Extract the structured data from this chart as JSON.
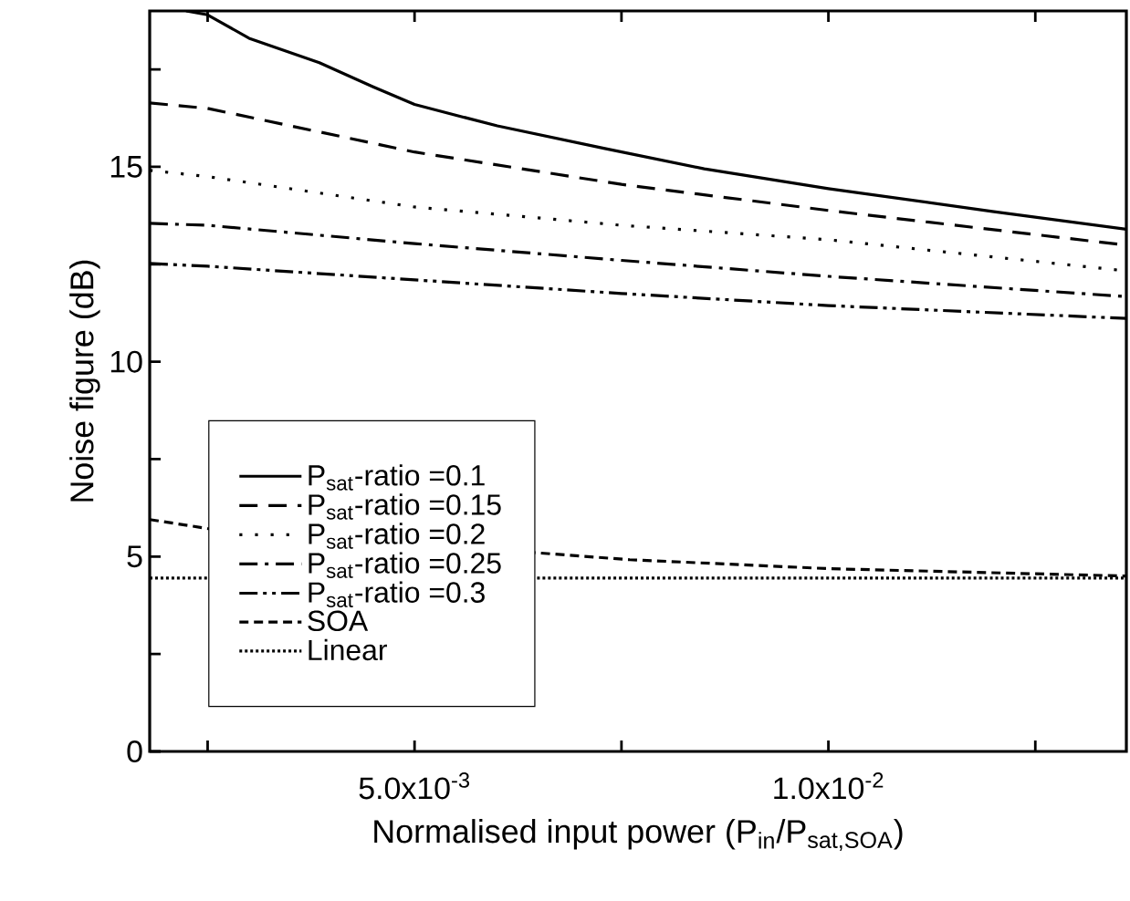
{
  "chart_data": {
    "type": "line",
    "xlabel": "Normalised input power (P$_{in}$/P$_{sat,SOA}$)",
    "ylabel": "Noise figure (dB)",
    "xlim": [
      0.0018,
      0.0136
    ],
    "ylim": [
      0,
      19
    ],
    "xticks": [
      {
        "value": 0.0025,
        "label": null
      },
      {
        "value": 0.005,
        "label": "5.0x10$^{-3}$"
      },
      {
        "value": 0.0075,
        "label": null
      },
      {
        "value": 0.01,
        "label": "1.0x10$^{-2}$"
      },
      {
        "value": 0.0125,
        "label": null
      }
    ],
    "yticks": [
      0,
      {
        "value": 2.5,
        "label": null
      },
      5,
      {
        "value": 7.5,
        "label": null
      },
      10,
      {
        "value": 12.5,
        "label": null
      },
      15,
      {
        "value": 17.5,
        "label": null
      }
    ],
    "legend": "bottom left",
    "series": [
      {
        "name": "P$_{sat}$-ratio =0.1",
        "color": "#000000",
        "line_style": "solid",
        "x": [
          0.00224,
          0.0025,
          0.003,
          0.00385,
          0.0045,
          0.005,
          0.006,
          0.0073,
          0.0085,
          0.01,
          0.012,
          0.0136
        ],
        "values": [
          19.0,
          18.9,
          18.3,
          17.67,
          17.05,
          16.6,
          16.05,
          15.47,
          14.95,
          14.44,
          13.85,
          13.4
        ]
      },
      {
        "name": "P$_{sat}$-ratio =0.15",
        "color": "#000000",
        "line_style": "dashed",
        "x": [
          0.0018,
          0.0025,
          0.005,
          0.0075,
          0.01,
          0.0136
        ],
        "values": [
          16.64,
          16.5,
          15.38,
          14.55,
          13.88,
          12.99
        ]
      },
      {
        "name": "P$_{sat}$-ratio =0.2",
        "color": "#000000",
        "line_style": "dotted",
        "x": [
          0.0018,
          0.0025,
          0.005,
          0.0075,
          0.01,
          0.0136
        ],
        "values": [
          14.91,
          14.75,
          13.97,
          13.5,
          13.13,
          12.33
        ]
      },
      {
        "name": "P$_{sat}$-ratio =0.25",
        "color": "#000000",
        "line_style": "dashdot",
        "x": [
          0.0018,
          0.0025,
          0.005,
          0.0075,
          0.01,
          0.0136
        ],
        "values": [
          13.55,
          13.5,
          13.03,
          12.6,
          12.19,
          11.67
        ]
      },
      {
        "name": "P$_{sat}$-ratio =0.3",
        "color": "#000000",
        "line_style": "dashdotdot",
        "x": [
          0.0018,
          0.0025,
          0.005,
          0.0075,
          0.01,
          0.0136
        ],
        "values": [
          12.52,
          12.45,
          12.1,
          11.75,
          11.44,
          11.11
        ]
      },
      {
        "name": "SOA",
        "color": "#000000",
        "line_style": "densely dashed",
        "x": [
          0.0018,
          0.0025,
          0.0076,
          0.01,
          0.0136
        ],
        "values": [
          5.95,
          5.72,
          4.92,
          4.69,
          4.5
        ]
      },
      {
        "name": "Linear",
        "color": "#000000",
        "line_style": "densely dotted",
        "x": [
          0.0018,
          0.0136
        ],
        "values": [
          4.45,
          4.45
        ]
      }
    ]
  }
}
